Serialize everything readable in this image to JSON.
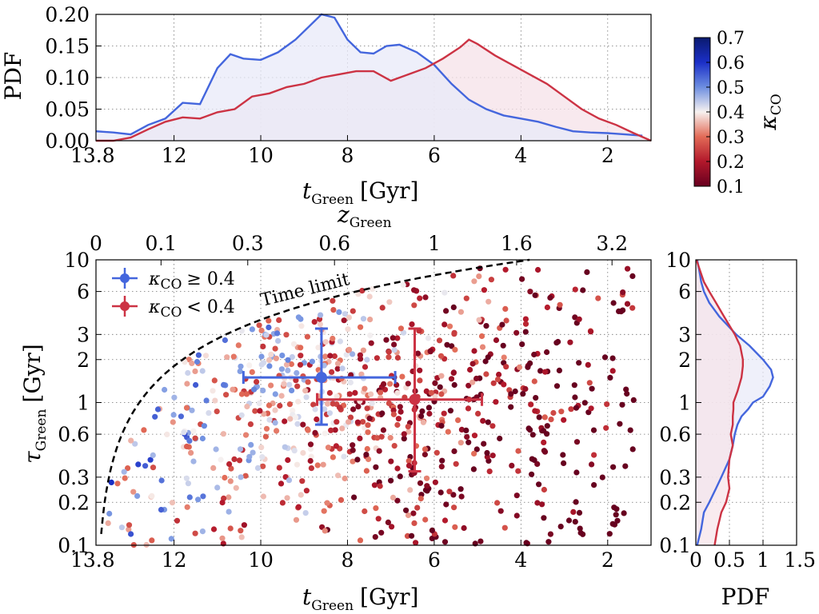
{
  "chart_data": [
    {
      "id": "top_pdf",
      "type": "area",
      "ylabel": "PDF",
      "xlabel": {
        "main": "t",
        "sub": "Green",
        "unit": "[Gyr]"
      },
      "xlim": [
        13.8,
        1.0
      ],
      "ylim": [
        0,
        0.2
      ],
      "x_ticks": [
        13.8,
        12,
        10,
        8,
        6,
        4,
        2
      ],
      "x_tick_labels": [
        "13.8",
        "12",
        "10",
        "8",
        "6",
        "4",
        "2"
      ],
      "y_ticks": [
        0,
        0.05,
        0.1,
        0.15,
        0.2
      ],
      "y_tick_labels": [
        "0.00",
        "0.05",
        "0.10",
        "0.15",
        "0.20"
      ],
      "grid": true,
      "series": [
        {
          "key": "blue",
          "color": "#4466dd",
          "fill": "#e8eaf8",
          "x": [
            13.8,
            13.4,
            13.0,
            12.6,
            12.2,
            11.8,
            11.4,
            11.0,
            10.7,
            10.4,
            10.0,
            9.6,
            9.2,
            8.9,
            8.6,
            8.3,
            8.0,
            7.7,
            7.4,
            7.1,
            6.8,
            6.4,
            6.0,
            5.6,
            5.2,
            4.8,
            4.4,
            4.0,
            3.6,
            3.2,
            2.8,
            2.4,
            2.0,
            1.6,
            1.2
          ],
          "y": [
            0.015,
            0.013,
            0.01,
            0.025,
            0.035,
            0.06,
            0.058,
            0.115,
            0.137,
            0.13,
            0.128,
            0.14,
            0.16,
            0.18,
            0.2,
            0.195,
            0.16,
            0.14,
            0.138,
            0.15,
            0.152,
            0.14,
            0.12,
            0.09,
            0.065,
            0.05,
            0.04,
            0.035,
            0.03,
            0.022,
            0.015,
            0.013,
            0.012,
            0.01,
            0.008
          ]
        },
        {
          "key": "red",
          "color": "#cc3344",
          "fill": "#f6e2e8",
          "x": [
            13.8,
            13.4,
            13.0,
            12.6,
            12.2,
            11.8,
            11.4,
            11.0,
            10.6,
            10.2,
            9.8,
            9.4,
            9.0,
            8.6,
            8.2,
            7.8,
            7.4,
            7.0,
            6.6,
            6.2,
            5.8,
            5.4,
            5.2,
            5.0,
            4.6,
            4.2,
            3.8,
            3.4,
            3.0,
            2.6,
            2.2,
            1.8,
            1.4,
            1.0
          ],
          "y": [
            0.0,
            0.0,
            0.005,
            0.018,
            0.03,
            0.037,
            0.035,
            0.045,
            0.05,
            0.07,
            0.075,
            0.085,
            0.09,
            0.1,
            0.105,
            0.11,
            0.11,
            0.095,
            0.105,
            0.115,
            0.13,
            0.148,
            0.16,
            0.153,
            0.135,
            0.12,
            0.105,
            0.09,
            0.07,
            0.05,
            0.035,
            0.025,
            0.012,
            0.0
          ]
        }
      ]
    },
    {
      "id": "colorbar",
      "type": "heatmap",
      "label": {
        "main": "κ",
        "sub": "CO"
      },
      "range": [
        0.1,
        0.7
      ],
      "ticks": [
        0.1,
        0.2,
        0.3,
        0.4,
        0.5,
        0.6,
        0.7
      ],
      "tick_labels": [
        "0.1",
        "0.2",
        "0.3",
        "0.4",
        "0.5",
        "0.6",
        "0.7"
      ],
      "colormap": [
        {
          "v": 0.1,
          "c": "#67001f"
        },
        {
          "v": 0.2,
          "c": "#b2182b"
        },
        {
          "v": 0.3,
          "c": "#e26b57"
        },
        {
          "v": 0.4,
          "c": "#f7f2f0"
        },
        {
          "v": 0.5,
          "c": "#6d8ee0"
        },
        {
          "v": 0.6,
          "c": "#1b2fc8"
        },
        {
          "v": 0.7,
          "c": "#0a1a6e"
        }
      ]
    },
    {
      "id": "main_scatter",
      "type": "scatter",
      "xlabel": {
        "main": "t",
        "sub": "Green",
        "unit": "[Gyr]"
      },
      "ylabel": {
        "main": "τ",
        "sub": "Green",
        "unit": "[Gyr]"
      },
      "top_xlabel": {
        "main": "z",
        "sub": "Green"
      },
      "xlim": [
        13.8,
        1.0
      ],
      "ylim": [
        0.1,
        10
      ],
      "yscale": "log",
      "x_ticks": [
        13.8,
        12,
        10,
        8,
        6,
        4,
        2
      ],
      "x_tick_labels": [
        "13.8",
        "12",
        "10",
        "8",
        "6",
        "4",
        "2"
      ],
      "y_ticks": [
        0.1,
        0.2,
        0.3,
        0.6,
        1,
        2,
        3,
        6,
        10
      ],
      "y_tick_labels": [
        "0.1",
        "0.2",
        "0.3",
        "0.6",
        "1",
        "2",
        "3",
        "6",
        "10"
      ],
      "top_ticks_t": [
        13.8,
        12.3,
        10.3,
        8.3,
        6.0,
        4.1,
        1.9
      ],
      "top_tick_labels": [
        "0",
        "0.1",
        "0.3",
        "0.6",
        "1",
        "1.6",
        "3.2"
      ],
      "grid": true,
      "time_limit": {
        "label": "Time limit",
        "t0": 13.8
      },
      "legend": [
        {
          "label": "κ",
          "sub": "CO",
          "rel": "≥ 0.4",
          "color": "#4466dd"
        },
        {
          "label": "κ",
          "sub": "CO",
          "rel": "< 0.4",
          "color": "#cc3344"
        }
      ],
      "errorbars": [
        {
          "series": "κCO ≥ 0.4",
          "color": "#4466dd",
          "x": 8.6,
          "y": 1.5,
          "xerr": [
            10.4,
            6.9
          ],
          "yerr": [
            0.7,
            3.3
          ]
        },
        {
          "series": "κCO < 0.4",
          "color": "#cc3344",
          "x": 6.45,
          "y": 1.05,
          "xerr": [
            8.7,
            4.9
          ],
          "yerr": [
            0.33,
            3.3
          ]
        }
      ],
      "points": {
        "count": 850,
        "note_color_from_kappa": true,
        "seed": 7
      }
    },
    {
      "id": "right_pdf",
      "type": "line",
      "xlabel": "PDF",
      "xlim": [
        0,
        1.5
      ],
      "ylim": [
        0.1,
        10
      ],
      "yscale": "log",
      "x_ticks": [
        0,
        0.5,
        1,
        1.5
      ],
      "x_tick_labels": [
        "0",
        "0.5",
        "1",
        "1.5"
      ],
      "y_ticks": [
        0.1,
        0.2,
        0.3,
        0.6,
        1,
        2,
        3,
        6,
        10
      ],
      "y_tick_labels": [
        "0.1",
        "0.2",
        "0.3",
        "0.6",
        "1",
        "2",
        "3",
        "6",
        "10"
      ],
      "grid": true,
      "series": [
        {
          "key": "blue",
          "color": "#4466dd",
          "fill": "#e8eaf8",
          "y": [
            0.1,
            0.13,
            0.17,
            0.2,
            0.25,
            0.3,
            0.4,
            0.5,
            0.6,
            0.7,
            0.8,
            0.9,
            1.0,
            1.1,
            1.3,
            1.5,
            1.7,
            2.0,
            2.5,
            3.0,
            4.0,
            5.0,
            6.0,
            7.0,
            8.5,
            10.0
          ],
          "x": [
            0.02,
            0.08,
            0.12,
            0.2,
            0.3,
            0.38,
            0.5,
            0.55,
            0.58,
            0.62,
            0.68,
            0.78,
            0.85,
            1.0,
            1.1,
            1.15,
            1.12,
            1.0,
            0.8,
            0.6,
            0.35,
            0.2,
            0.12,
            0.08,
            0.05,
            0.02
          ]
        },
        {
          "key": "red",
          "color": "#cc3344",
          "fill": "#f6e2e8",
          "y": [
            0.1,
            0.13,
            0.17,
            0.2,
            0.25,
            0.3,
            0.4,
            0.5,
            0.6,
            0.7,
            0.8,
            0.9,
            1.0,
            1.2,
            1.5,
            1.8,
            2.0,
            2.5,
            3.0,
            4.0,
            5.0,
            6.0,
            7.0,
            8.5,
            10.0
          ],
          "x": [
            0.28,
            0.32,
            0.38,
            0.45,
            0.5,
            0.48,
            0.5,
            0.55,
            0.52,
            0.55,
            0.55,
            0.56,
            0.56,
            0.62,
            0.68,
            0.7,
            0.7,
            0.66,
            0.58,
            0.42,
            0.3,
            0.2,
            0.12,
            0.06,
            0.01
          ]
        }
      ]
    }
  ]
}
